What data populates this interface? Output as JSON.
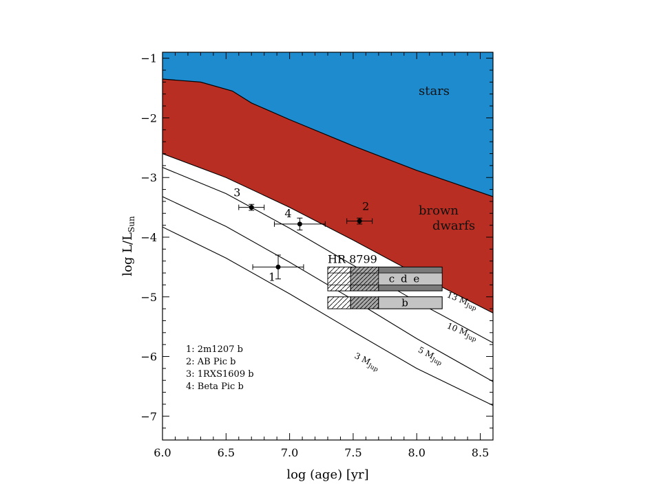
{
  "chart_data": {
    "type": "line",
    "xlabel": "log (age) [yr]",
    "ylabel_main": "log L/L",
    "ylabel_sub": "Sun",
    "xlim": [
      6.0,
      8.6
    ],
    "ylim": [
      -7.4,
      -0.9
    ],
    "xticks": [
      "6.0",
      "6.5",
      "7.0",
      "7.5",
      "8.0",
      "8.5"
    ],
    "xtick_values": [
      6.0,
      6.5,
      7.0,
      7.5,
      8.0,
      8.5
    ],
    "yticks": [
      "−1",
      "−2",
      "−3",
      "−4",
      "−5",
      "−6",
      "−7"
    ],
    "ytick_values": [
      -1,
      -2,
      -3,
      -4,
      -5,
      -6,
      -7
    ],
    "regions": [
      {
        "label": "stars",
        "color": "#1f8bcf"
      },
      {
        "label_line1": "brown",
        "label_line2": "dwarfs",
        "color": "#b82e22"
      }
    ],
    "star_boundary": [
      [
        6.0,
        -1.35
      ],
      [
        6.3,
        -1.4
      ],
      [
        6.55,
        -1.55
      ],
      [
        6.7,
        -1.75
      ],
      [
        7.0,
        -2.03
      ],
      [
        7.5,
        -2.47
      ],
      [
        8.0,
        -2.88
      ],
      [
        8.6,
        -3.32
      ]
    ],
    "bd_lower_boundary": [
      [
        6.0,
        -2.6
      ],
      [
        6.5,
        -3.0
      ],
      [
        7.0,
        -3.5
      ],
      [
        7.5,
        -4.05
      ],
      [
        8.0,
        -4.62
      ],
      [
        8.6,
        -5.27
      ]
    ],
    "mass_tracks": [
      {
        "label": "13 M",
        "sub": "Jup",
        "points": [
          [
            6.0,
            -2.6
          ],
          [
            6.5,
            -3.0
          ],
          [
            7.0,
            -3.5
          ],
          [
            7.5,
            -4.05
          ],
          [
            8.0,
            -4.62
          ],
          [
            8.6,
            -5.27
          ]
        ]
      },
      {
        "label": "10 M",
        "sub": "Jup",
        "points": [
          [
            6.0,
            -2.83
          ],
          [
            6.5,
            -3.27
          ],
          [
            7.0,
            -3.85
          ],
          [
            7.5,
            -4.47
          ],
          [
            8.0,
            -5.08
          ],
          [
            8.6,
            -5.77
          ]
        ]
      },
      {
        "label": "5 M",
        "sub": "Jup",
        "points": [
          [
            6.0,
            -3.32
          ],
          [
            6.5,
            -3.82
          ],
          [
            7.0,
            -4.42
          ],
          [
            7.5,
            -5.05
          ],
          [
            8.0,
            -5.7
          ],
          [
            8.6,
            -6.42
          ]
        ]
      },
      {
        "label": "3 M",
        "sub": "Jup",
        "points": [
          [
            6.0,
            -3.83
          ],
          [
            6.5,
            -4.35
          ],
          [
            7.0,
            -4.95
          ],
          [
            7.5,
            -5.58
          ],
          [
            8.0,
            -6.2
          ],
          [
            8.6,
            -6.82
          ]
        ]
      }
    ],
    "objects": [
      {
        "id": "1",
        "x": 6.91,
        "y": -4.5,
        "xerr": 0.2,
        "yerr_low": 0.2,
        "yerr_high": 0.2
      },
      {
        "id": "2",
        "x": 7.55,
        "y": -3.73,
        "xerr": 0.1,
        "yerr_low": 0.05,
        "yerr_high": 0.05
      },
      {
        "id": "3",
        "x": 6.7,
        "y": -3.5,
        "xerr": 0.1,
        "yerr_low": 0.05,
        "yerr_high": 0.05
      },
      {
        "id": "4",
        "x": 7.08,
        "y": -3.78,
        "xerr": 0.2,
        "yerr_low": 0.1,
        "yerr_high": 0.1
      }
    ],
    "hr8799": {
      "label": "HR 8799",
      "bar1_text": "c d e",
      "bar2_text": "b",
      "x_start": 7.3,
      "x_hatch1_end": 7.48,
      "x_hatch2_end": 7.7,
      "x_end": 8.2,
      "bar1_y": [
        -4.5,
        -4.9
      ],
      "bar1_inner": [
        -4.6,
        -4.8
      ],
      "bar2_y": [
        -5.0,
        -5.2
      ]
    },
    "legend": [
      "1: 2m1207 b",
      "2: AB Pic b",
      "3: 1RXS1609 b",
      "4: Beta Pic b"
    ]
  }
}
